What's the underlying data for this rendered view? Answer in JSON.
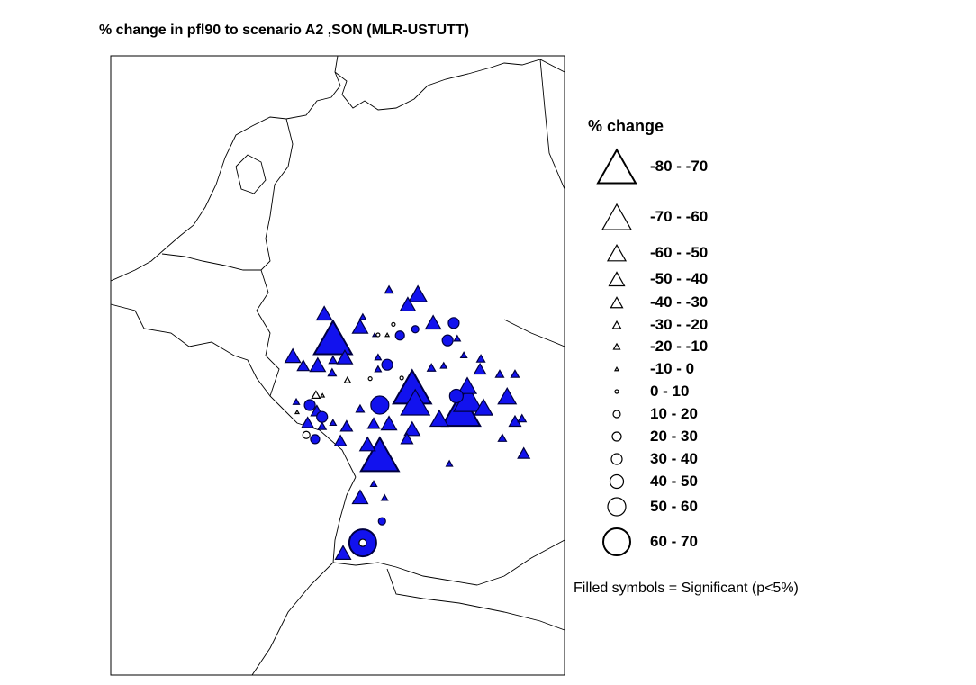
{
  "title": "% change in pfl90 to scenario A2 ,SON (MLR-USTUTT)",
  "legend": {
    "title": "% change",
    "classes": [
      {
        "label": "-80 - -70",
        "shape": "triangle"
      },
      {
        "label": "-70 - -60",
        "shape": "triangle"
      },
      {
        "label": "-60 - -50",
        "shape": "triangle"
      },
      {
        "label": "-50 - -40",
        "shape": "triangle"
      },
      {
        "label": "-40 - -30",
        "shape": "triangle"
      },
      {
        "label": "-30 - -20",
        "shape": "triangle"
      },
      {
        "label": "-20 - -10",
        "shape": "triangle"
      },
      {
        "label": "-10 - 0",
        "shape": "triangle"
      },
      {
        "label": "0 - 10",
        "shape": "circle"
      },
      {
        "label": "10 - 20",
        "shape": "circle"
      },
      {
        "label": "20 - 30",
        "shape": "circle"
      },
      {
        "label": "30 - 40",
        "shape": "circle"
      },
      {
        "label": "40 - 50",
        "shape": "circle"
      },
      {
        "label": "50 - 60",
        "shape": "circle"
      },
      {
        "label": "60 - 70",
        "shape": "circle"
      }
    ],
    "note": "Filled symbols = Significant (p<5%)"
  },
  "colors": {
    "significant_fill": "#1212ee",
    "symbol_stroke": "#000040",
    "border": "#000000"
  },
  "stations": [
    {
      "lon": 9.56,
      "lat": 51.94,
      "cls": 5,
      "sig": true
    },
    {
      "lon": 10.22,
      "lat": 51.88,
      "cls": 2,
      "sig": true
    },
    {
      "lon": 9.99,
      "lat": 51.73,
      "cls": 3,
      "sig": true
    },
    {
      "lon": 8.08,
      "lat": 51.6,
      "cls": 3,
      "sig": true
    },
    {
      "lon": 8.28,
      "lat": 51.25,
      "cls": 0,
      "sig": true
    },
    {
      "lon": 8.9,
      "lat": 51.41,
      "cls": 3,
      "sig": true
    },
    {
      "lon": 8.96,
      "lat": 51.55,
      "cls": 6,
      "sig": true
    },
    {
      "lon": 9.66,
      "lat": 51.44,
      "cls": 8,
      "sig": false
    },
    {
      "lon": 10.57,
      "lat": 51.47,
      "cls": 3,
      "sig": true
    },
    {
      "lon": 11.04,
      "lat": 51.46,
      "cls": 11,
      "sig": true
    },
    {
      "lon": 10.16,
      "lat": 51.37,
      "cls": 9,
      "sig": true
    },
    {
      "lon": 9.81,
      "lat": 51.28,
      "cls": 10,
      "sig": true
    },
    {
      "lon": 9.31,
      "lat": 51.29,
      "cls": 8,
      "sig": false
    },
    {
      "lon": 9.52,
      "lat": 51.29,
      "cls": 7,
      "sig": false
    },
    {
      "lon": 9.23,
      "lat": 51.29,
      "cls": 7,
      "sig": true
    },
    {
      "lon": 10.9,
      "lat": 51.21,
      "cls": 11,
      "sig": true
    },
    {
      "lon": 11.12,
      "lat": 51.24,
      "cls": 6,
      "sig": true
    },
    {
      "lon": 7.36,
      "lat": 50.99,
      "cls": 3,
      "sig": true
    },
    {
      "lon": 7.6,
      "lat": 50.85,
      "cls": 4,
      "sig": true
    },
    {
      "lon": 7.93,
      "lat": 50.86,
      "cls": 3,
      "sig": true
    },
    {
      "lon": 8.28,
      "lat": 50.93,
      "cls": 5,
      "sig": true
    },
    {
      "lon": 8.55,
      "lat": 50.97,
      "cls": 3,
      "sig": true
    },
    {
      "lon": 8.26,
      "lat": 50.75,
      "cls": 5,
      "sig": true
    },
    {
      "lon": 9.31,
      "lat": 50.97,
      "cls": 6,
      "sig": true
    },
    {
      "lon": 9.31,
      "lat": 50.8,
      "cls": 6,
      "sig": true
    },
    {
      "lon": 9.52,
      "lat": 50.86,
      "cls": 11,
      "sig": true
    },
    {
      "lon": 9.13,
      "lat": 50.66,
      "cls": 8,
      "sig": false
    },
    {
      "lon": 8.61,
      "lat": 50.64,
      "cls": 6,
      "sig": false
    },
    {
      "lon": 9.85,
      "lat": 50.67,
      "cls": 8,
      "sig": false
    },
    {
      "lon": 10.16,
      "lat": 50.32,
      "cls": 1,
      "sig": true
    },
    {
      "lon": 10.09,
      "lat": 50.54,
      "cls": 0,
      "sig": true
    },
    {
      "lon": 10.53,
      "lat": 50.82,
      "cls": 5,
      "sig": true
    },
    {
      "lon": 10.81,
      "lat": 50.85,
      "cls": 6,
      "sig": true
    },
    {
      "lon": 11.27,
      "lat": 51.0,
      "cls": 6,
      "sig": true
    },
    {
      "lon": 11.66,
      "lat": 50.95,
      "cls": 5,
      "sig": true
    },
    {
      "lon": 11.64,
      "lat": 50.8,
      "cls": 4,
      "sig": true
    },
    {
      "lon": 12.09,
      "lat": 50.73,
      "cls": 5,
      "sig": true
    },
    {
      "lon": 12.44,
      "lat": 50.73,
      "cls": 5,
      "sig": true
    },
    {
      "lon": 11.1,
      "lat": 50.41,
      "cls": 12,
      "sig": true
    },
    {
      "lon": 11.35,
      "lat": 50.56,
      "cls": 2,
      "sig": true
    },
    {
      "lon": 12.26,
      "lat": 50.41,
      "cls": 2,
      "sig": true
    },
    {
      "lon": 11.37,
      "lat": 50.37,
      "cls": 1,
      "sig": true
    },
    {
      "lon": 11.21,
      "lat": 50.22,
      "cls": 0,
      "sig": true
    },
    {
      "lon": 11.72,
      "lat": 50.25,
      "cls": 2,
      "sig": true
    },
    {
      "lon": 10.71,
      "lat": 50.09,
      "cls": 2,
      "sig": true
    },
    {
      "lon": 9.35,
      "lat": 50.28,
      "cls": 13,
      "sig": true
    },
    {
      "lon": 8.9,
      "lat": 50.23,
      "cls": 5,
      "sig": true
    },
    {
      "lon": 9.21,
      "lat": 50.02,
      "cls": 4,
      "sig": true
    },
    {
      "lon": 9.56,
      "lat": 50.02,
      "cls": 3,
      "sig": true
    },
    {
      "lon": 10.09,
      "lat": 49.94,
      "cls": 3,
      "sig": true
    },
    {
      "lon": 9.97,
      "lat": 49.8,
      "cls": 4,
      "sig": true
    },
    {
      "lon": 9.07,
      "lat": 49.72,
      "cls": 3,
      "sig": true
    },
    {
      "lon": 9.35,
      "lat": 49.57,
      "cls": 0,
      "sig": true
    },
    {
      "lon": 12.6,
      "lat": 50.09,
      "cls": 5,
      "sig": true
    },
    {
      "lon": 12.44,
      "lat": 50.05,
      "cls": 4,
      "sig": true
    },
    {
      "lon": 12.15,
      "lat": 49.81,
      "cls": 5,
      "sig": true
    },
    {
      "lon": 12.64,
      "lat": 49.59,
      "cls": 4,
      "sig": true
    },
    {
      "lon": 10.94,
      "lat": 49.44,
      "cls": 6,
      "sig": true
    },
    {
      "lon": 9.21,
      "lat": 49.15,
      "cls": 6,
      "sig": true
    },
    {
      "lon": 8.9,
      "lat": 48.96,
      "cls": 3,
      "sig": true
    },
    {
      "lon": 9.46,
      "lat": 48.95,
      "cls": 6,
      "sig": true
    },
    {
      "lon": 9.4,
      "lat": 48.61,
      "cls": 9,
      "sig": true
    },
    {
      "lon": 8.96,
      "lat": 48.3,
      "cls": 14,
      "sig": true
    },
    {
      "lon": 8.96,
      "lat": 48.3,
      "cls": 9,
      "sig": false
    },
    {
      "lon": 8.51,
      "lat": 48.16,
      "cls": 3,
      "sig": true
    },
    {
      "lon": 7.44,
      "lat": 50.33,
      "cls": 6,
      "sig": true
    },
    {
      "lon": 7.89,
      "lat": 50.43,
      "cls": 5,
      "sig": false
    },
    {
      "lon": 7.75,
      "lat": 50.28,
      "cls": 11,
      "sig": true
    },
    {
      "lon": 7.46,
      "lat": 50.18,
      "cls": 7,
      "sig": false
    },
    {
      "lon": 7.91,
      "lat": 50.2,
      "cls": 4,
      "sig": true
    },
    {
      "lon": 8.03,
      "lat": 50.11,
      "cls": 11,
      "sig": true
    },
    {
      "lon": 7.7,
      "lat": 50.03,
      "cls": 4,
      "sig": true
    },
    {
      "lon": 8.03,
      "lat": 49.98,
      "cls": 5,
      "sig": true
    },
    {
      "lon": 8.28,
      "lat": 50.03,
      "cls": 6,
      "sig": true
    },
    {
      "lon": 8.59,
      "lat": 49.98,
      "cls": 4,
      "sig": true
    },
    {
      "lon": 7.67,
      "lat": 49.85,
      "cls": 9,
      "sig": false
    },
    {
      "lon": 7.87,
      "lat": 49.79,
      "cls": 10,
      "sig": true
    },
    {
      "lon": 8.45,
      "lat": 49.77,
      "cls": 4,
      "sig": true
    },
    {
      "lon": 8.04,
      "lat": 50.42,
      "cls": 7,
      "sig": false
    }
  ]
}
